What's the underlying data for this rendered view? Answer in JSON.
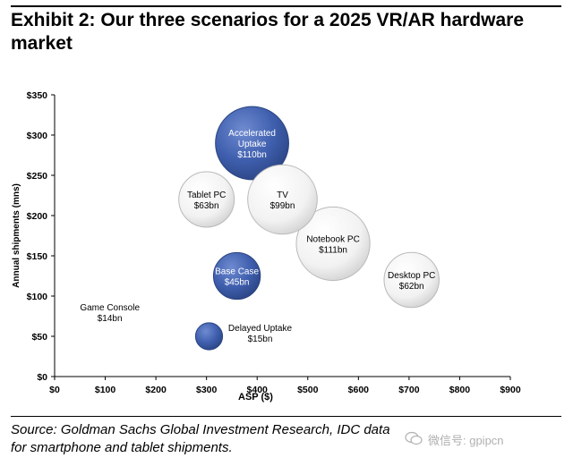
{
  "title": "Exhibit 2: Our three scenarios for a 2025 VR/AR hardware market",
  "source": "Source: Goldman Sachs Global Investment Research, IDC data for smartphone and tablet shipments.",
  "watermark": "微信号: gpipcn",
  "colors": {
    "highlight": "#3f5fae",
    "neutral": "#f2f2f2",
    "axis": "#000000"
  },
  "chart_data": {
    "type": "scatter",
    "subtype": "bubble",
    "title": "",
    "xlabel": "ASP ($)",
    "ylabel": "Annual shipments (mns)",
    "xlim": [
      0,
      900
    ],
    "ylim": [
      0,
      350
    ],
    "x_ticks": [
      0,
      100,
      200,
      300,
      400,
      500,
      600,
      700,
      800,
      900
    ],
    "x_tick_labels": [
      "$0",
      "$100",
      "$200",
      "$300",
      "$400",
      "$500",
      "$600",
      "$700",
      "$800",
      "$900"
    ],
    "y_ticks": [
      0,
      50,
      100,
      150,
      200,
      250,
      300,
      350
    ],
    "y_tick_labels": [
      "$0",
      "$50",
      "$100",
      "$150",
      "$200",
      "$250",
      "$300",
      "$350"
    ],
    "grid": false,
    "points": [
      {
        "label": "Accelerated Uptake",
        "value": "$110bn",
        "x": 390,
        "y": 290,
        "size": 110,
        "style": "highlight"
      },
      {
        "label": "Tablet PC",
        "value": "$63bn",
        "x": 300,
        "y": 220,
        "size": 63,
        "style": "neutral"
      },
      {
        "label": "TV",
        "value": "$99bn",
        "x": 450,
        "y": 220,
        "size": 99,
        "style": "neutral"
      },
      {
        "label": "Notebook PC",
        "value": "$111bn",
        "x": 550,
        "y": 165,
        "size": 111,
        "style": "neutral"
      },
      {
        "label": "Desktop PC",
        "value": "$62bn",
        "x": 705,
        "y": 120,
        "size": 62,
        "style": "neutral"
      },
      {
        "label": "Base Case",
        "value": "$45bn",
        "x": 360,
        "y": 125,
        "size": 45,
        "style": "highlight"
      },
      {
        "label": "Game Console",
        "value": "$14bn",
        "x": 300,
        "y": 50,
        "size": 14,
        "style": "neutral"
      },
      {
        "label": "Delayed Uptake",
        "value": "$15bn",
        "x": 305,
        "y": 50,
        "size": 15,
        "style": "highlight"
      }
    ]
  }
}
